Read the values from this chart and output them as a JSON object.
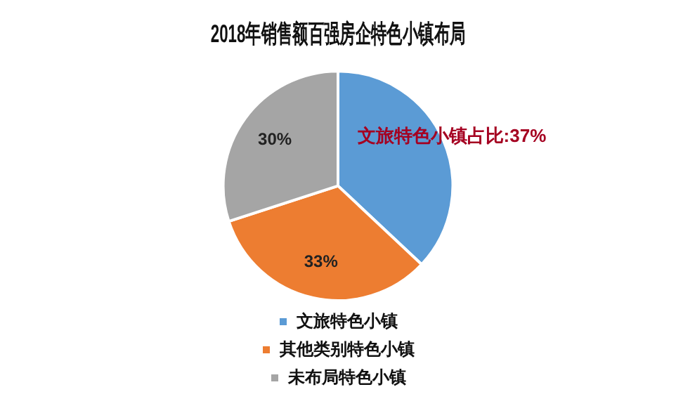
{
  "chart_data": {
    "type": "pie",
    "title": "2018年销售额百强房企特色小镇布局",
    "categories": [
      "文旅特色小镇",
      "其他类别特色小镇",
      "未布局特色小镇"
    ],
    "values": [
      37,
      33,
      30
    ],
    "colors": [
      "#5b9bd5",
      "#ed7d31",
      "#a5a5a5"
    ],
    "value_labels": [
      "文旅特色小镇占比:37%",
      "33%",
      "30%"
    ],
    "legend": "bottom"
  }
}
